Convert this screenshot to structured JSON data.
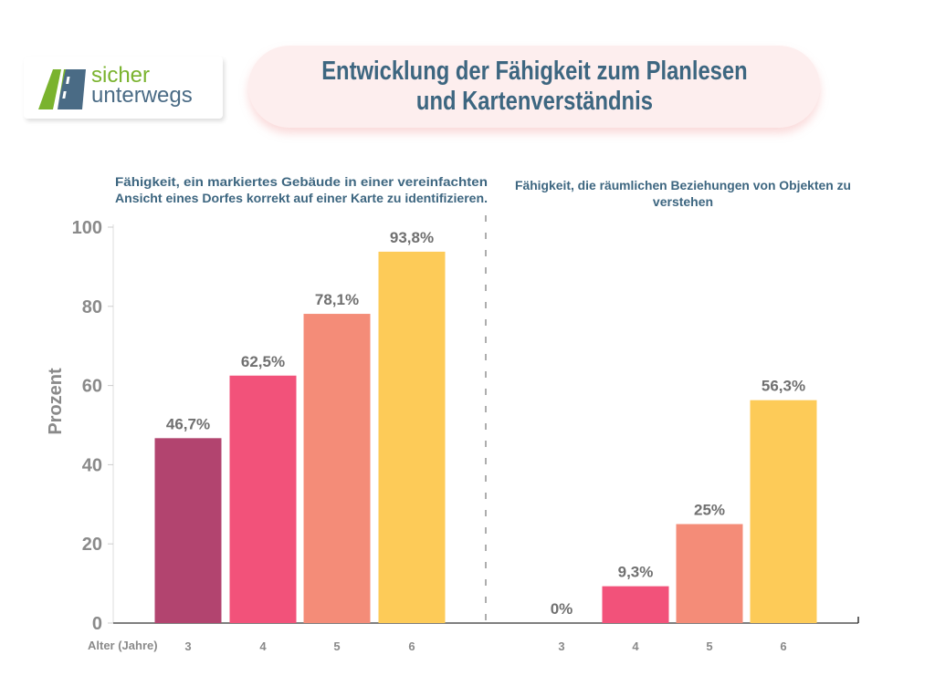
{
  "logo": {
    "line1": "sicher",
    "line2": "unterwegs"
  },
  "title": {
    "line1": "Entwicklung der Fähigkeit zum Planlesen",
    "line2": "und Kartenverständnis"
  },
  "colors": {
    "title": "#3d6680",
    "age3": "#b2446f",
    "age4": "#f2527a",
    "age5": "#f48c78",
    "age6": "#fdcb58"
  },
  "chart_data": {
    "type": "bar",
    "y_axis": {
      "label": "Prozent",
      "ylim": [
        0,
        100
      ],
      "ticks": [
        "0",
        "20",
        "40",
        "60",
        "80",
        "100"
      ]
    },
    "x_axis": {
      "label": "Alter (Jahre)"
    },
    "panels": [
      {
        "subtitle_line1": "Fähigkeit, ein markiertes Gebäude in einer vereinfachten",
        "subtitle_line2": "Ansicht eines Dorfes korrekt auf einer Karte zu identifizieren.",
        "categories": [
          "3",
          "4",
          "5",
          "6"
        ],
        "values": [
          46.7,
          62.5,
          78.1,
          93.8
        ],
        "value_labels": [
          "46,7%",
          "62,5%",
          "78,1%",
          "93,8%"
        ]
      },
      {
        "subtitle_line1": "Fähigkeit, die räumlichen Beziehungen von Objekten zu",
        "subtitle_line2": "verstehen",
        "categories": [
          "3",
          "4",
          "5",
          "6"
        ],
        "values": [
          0,
          9.3,
          25,
          56.3
        ],
        "value_labels": [
          "0%",
          "9,3%",
          "25%",
          "56,3%"
        ]
      }
    ]
  }
}
